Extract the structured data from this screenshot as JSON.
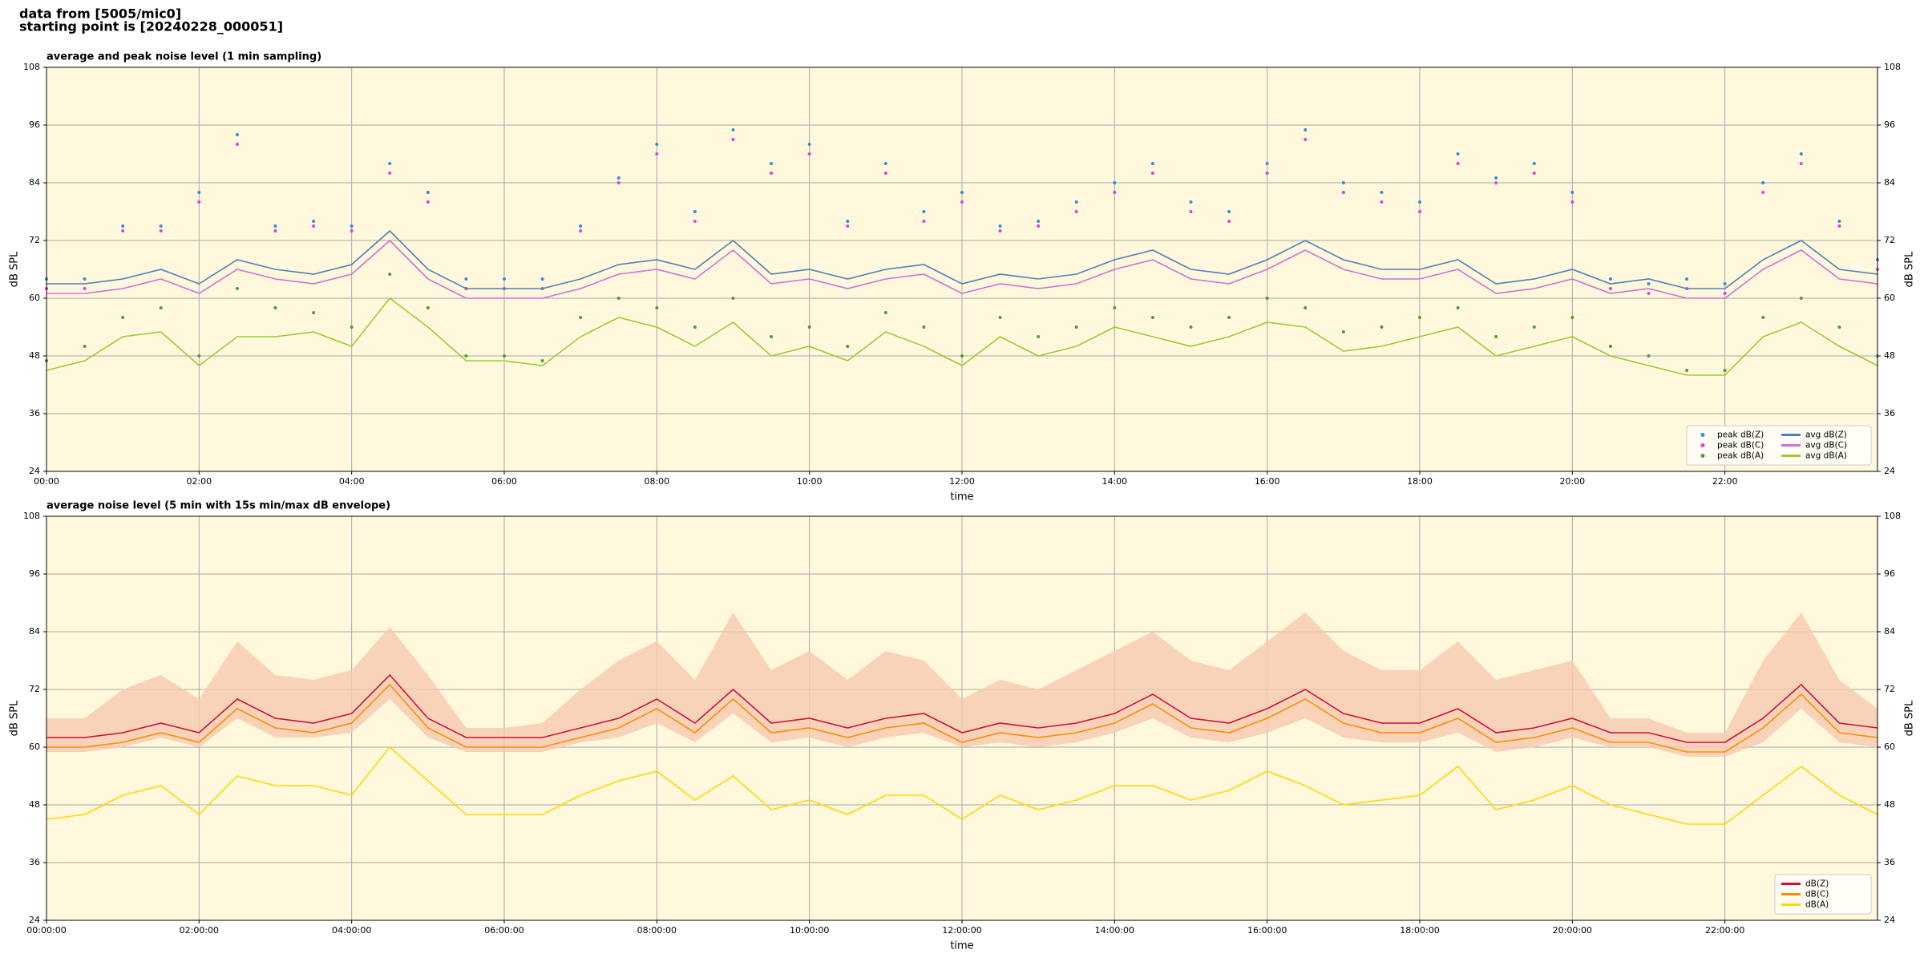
{
  "header": {
    "line1": "data from [5005/mic0]",
    "line2": "starting point is [20240228_000051]"
  },
  "chart_data": [
    {
      "type": "line",
      "title": "average and peak noise level (1 min sampling)",
      "xlabel": "time",
      "ylabel": "dB SPL",
      "x": [
        0,
        0.5,
        1,
        1.5,
        2,
        2.5,
        3,
        3.5,
        4,
        4.5,
        5,
        5.5,
        6,
        6.5,
        7,
        7.5,
        8,
        8.5,
        9,
        9.5,
        10,
        10.5,
        11,
        11.5,
        12,
        12.5,
        13,
        13.5,
        14,
        14.5,
        15,
        15.5,
        16,
        16.5,
        17,
        17.5,
        18,
        18.5,
        19,
        19.5,
        20,
        20.5,
        21,
        21.5,
        22,
        22.5,
        23,
        23.5,
        24
      ],
      "xlim": [
        0,
        24
      ],
      "ylim": [
        24,
        108
      ],
      "yticks": [
        24,
        36,
        48,
        60,
        72,
        84,
        96,
        108
      ],
      "xticks": [
        {
          "value": 0,
          "label": "00:00"
        },
        {
          "value": 2,
          "label": "02:00"
        },
        {
          "value": 4,
          "label": "04:00"
        },
        {
          "value": 6,
          "label": "06:00"
        },
        {
          "value": 8,
          "label": "08:00"
        },
        {
          "value": 10,
          "label": "10:00"
        },
        {
          "value": 12,
          "label": "12:00"
        },
        {
          "value": 14,
          "label": "14:00"
        },
        {
          "value": 16,
          "label": "16:00"
        },
        {
          "value": 18,
          "label": "18:00"
        },
        {
          "value": 20,
          "label": "20:00"
        },
        {
          "value": 22,
          "label": "22:00"
        }
      ],
      "grid": true,
      "legend": "lower right",
      "legend_columns": 2,
      "background": "#fff8dc",
      "series": [
        {
          "name": "peak dB(Z)",
          "type": "scatter",
          "color": "#2f8fd8",
          "values": [
            64,
            64,
            75,
            75,
            82,
            94,
            75,
            76,
            75,
            88,
            82,
            64,
            64,
            64,
            75,
            85,
            92,
            78,
            95,
            88,
            92,
            76,
            88,
            78,
            82,
            75,
            76,
            80,
            84,
            88,
            80,
            78,
            88,
            95,
            84,
            82,
            80,
            90,
            85,
            88,
            82,
            64,
            63,
            64,
            63,
            84,
            90,
            76,
            68
          ]
        },
        {
          "name": "peak dB(C)",
          "type": "scatter",
          "color": "#e040e0",
          "values": [
            62,
            62,
            74,
            74,
            80,
            92,
            74,
            75,
            74,
            86,
            80,
            62,
            62,
            62,
            74,
            84,
            90,
            76,
            93,
            86,
            90,
            75,
            86,
            76,
            80,
            74,
            75,
            78,
            82,
            86,
            78,
            76,
            86,
            93,
            82,
            80,
            78,
            88,
            84,
            86,
            80,
            62,
            61,
            62,
            61,
            82,
            88,
            75,
            66
          ]
        },
        {
          "name": "peak dB(A)",
          "type": "scatter",
          "color": "#4f9a3a",
          "values": [
            47,
            50,
            56,
            58,
            48,
            62,
            58,
            57,
            54,
            65,
            58,
            48,
            48,
            47,
            56,
            60,
            58,
            54,
            60,
            52,
            54,
            50,
            57,
            54,
            48,
            56,
            52,
            54,
            58,
            56,
            54,
            56,
            60,
            58,
            53,
            54,
            56,
            58,
            52,
            54,
            56,
            50,
            48,
            45,
            45,
            56,
            60,
            54,
            48
          ]
        },
        {
          "name": "avg dB(Z)",
          "type": "line",
          "color": "#4f7fb8",
          "values": [
            63,
            63,
            64,
            66,
            63,
            68,
            66,
            65,
            67,
            74,
            66,
            62,
            62,
            62,
            64,
            67,
            68,
            66,
            72,
            65,
            66,
            64,
            66,
            67,
            63,
            65,
            64,
            65,
            68,
            70,
            66,
            65,
            68,
            72,
            68,
            66,
            66,
            68,
            63,
            64,
            66,
            63,
            64,
            62,
            62,
            68,
            72,
            66,
            65
          ]
        },
        {
          "name": "avg dB(C)",
          "type": "line",
          "color": "#d070d8",
          "values": [
            61,
            61,
            62,
            64,
            61,
            66,
            64,
            63,
            65,
            72,
            64,
            60,
            60,
            60,
            62,
            65,
            66,
            64,
            70,
            63,
            64,
            62,
            64,
            65,
            61,
            63,
            62,
            63,
            66,
            68,
            64,
            63,
            66,
            70,
            66,
            64,
            64,
            66,
            61,
            62,
            64,
            61,
            62,
            60,
            60,
            66,
            70,
            64,
            63
          ]
        },
        {
          "name": "avg dB(A)",
          "type": "line",
          "color": "#9acd32",
          "values": [
            45,
            47,
            52,
            53,
            46,
            52,
            52,
            53,
            50,
            60,
            54,
            47,
            47,
            46,
            52,
            56,
            54,
            50,
            55,
            48,
            50,
            47,
            53,
            50,
            46,
            52,
            48,
            50,
            54,
            52,
            50,
            52,
            55,
            54,
            49,
            50,
            52,
            54,
            48,
            50,
            52,
            48,
            46,
            44,
            44,
            52,
            55,
            50,
            46
          ]
        }
      ]
    },
    {
      "type": "line",
      "title": "average noise level (5 min with 15s min/max dB envelope)",
      "xlabel": "time",
      "ylabel": "dB SPL",
      "x": [
        0,
        0.5,
        1,
        1.5,
        2,
        2.5,
        3,
        3.5,
        4,
        4.5,
        5,
        5.5,
        6,
        6.5,
        7,
        7.5,
        8,
        8.5,
        9,
        9.5,
        10,
        10.5,
        11,
        11.5,
        12,
        12.5,
        13,
        13.5,
        14,
        14.5,
        15,
        15.5,
        16,
        16.5,
        17,
        17.5,
        18,
        18.5,
        19,
        19.5,
        20,
        20.5,
        21,
        21.5,
        22,
        22.5,
        23,
        23.5,
        24
      ],
      "xlim": [
        0,
        24
      ],
      "ylim": [
        24,
        108
      ],
      "yticks": [
        24,
        36,
        48,
        60,
        72,
        84,
        96,
        108
      ],
      "xticks": [
        {
          "value": 0,
          "label": "00:00:00"
        },
        {
          "value": 2,
          "label": "02:00:00"
        },
        {
          "value": 4,
          "label": "04:00:00"
        },
        {
          "value": 6,
          "label": "06:00:00"
        },
        {
          "value": 8,
          "label": "08:00:00"
        },
        {
          "value": 10,
          "label": "10:00:00"
        },
        {
          "value": 12,
          "label": "12:00:00"
        },
        {
          "value": 14,
          "label": "14:00:00"
        },
        {
          "value": 16,
          "label": "16:00:00"
        },
        {
          "value": 18,
          "label": "18:00:00"
        },
        {
          "value": 20,
          "label": "20:00:00"
        },
        {
          "value": 22,
          "label": "22:00:00"
        }
      ],
      "grid": true,
      "legend": "lower right",
      "legend_columns": 1,
      "background": "#fff8dc",
      "band": {
        "color": "#f6c9b0",
        "upper": [
          66,
          66,
          72,
          75,
          70,
          82,
          75,
          74,
          76,
          85,
          75,
          64,
          64,
          65,
          72,
          78,
          82,
          74,
          88,
          76,
          80,
          74,
          80,
          78,
          70,
          74,
          72,
          76,
          80,
          84,
          78,
          76,
          82,
          88,
          80,
          76,
          76,
          82,
          74,
          76,
          78,
          66,
          66,
          63,
          63,
          78,
          88,
          74,
          68
        ],
        "lower": [
          59,
          59,
          60,
          62,
          60,
          66,
          62,
          62,
          63,
          70,
          62,
          59,
          59,
          59,
          61,
          62,
          65,
          61,
          67,
          61,
          62,
          60,
          62,
          63,
          60,
          61,
          60,
          61,
          63,
          66,
          62,
          61,
          63,
          66,
          62,
          61,
          61,
          63,
          59,
          60,
          62,
          60,
          60,
          58,
          58,
          61,
          68,
          61,
          60
        ]
      },
      "series": [
        {
          "name": "dB(Z)",
          "type": "line",
          "color": "#d0103a",
          "values": [
            62,
            62,
            63,
            65,
            63,
            70,
            66,
            65,
            67,
            75,
            66,
            62,
            62,
            62,
            64,
            66,
            70,
            65,
            72,
            65,
            66,
            64,
            66,
            67,
            63,
            65,
            64,
            65,
            67,
            71,
            66,
            65,
            68,
            72,
            67,
            65,
            65,
            68,
            63,
            64,
            66,
            63,
            63,
            61,
            61,
            66,
            73,
            65,
            64
          ]
        },
        {
          "name": "dB(C)",
          "type": "line",
          "color": "#ff8c00",
          "values": [
            60,
            60,
            61,
            63,
            61,
            68,
            64,
            63,
            65,
            73,
            64,
            60,
            60,
            60,
            62,
            64,
            68,
            63,
            70,
            63,
            64,
            62,
            64,
            65,
            61,
            63,
            62,
            63,
            65,
            69,
            64,
            63,
            66,
            70,
            65,
            63,
            63,
            66,
            61,
            62,
            64,
            61,
            61,
            59,
            59,
            64,
            71,
            63,
            62
          ]
        },
        {
          "name": "dB(A)",
          "type": "line",
          "color": "#ffd700",
          "values": [
            45,
            46,
            50,
            52,
            46,
            54,
            52,
            52,
            50,
            60,
            53,
            46,
            46,
            46,
            50,
            53,
            55,
            49,
            54,
            47,
            49,
            46,
            50,
            50,
            45,
            50,
            47,
            49,
            52,
            52,
            49,
            51,
            55,
            52,
            48,
            49,
            50,
            56,
            47,
            49,
            52,
            48,
            46,
            44,
            44,
            50,
            56,
            50,
            46
          ]
        }
      ]
    }
  ]
}
